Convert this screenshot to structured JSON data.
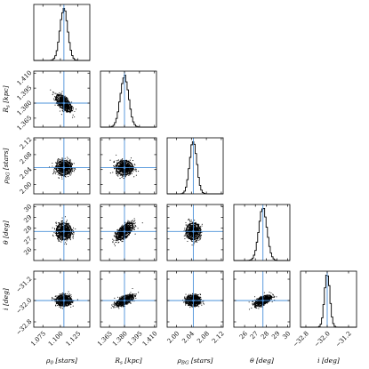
{
  "chart_data": {
    "type": "scatter",
    "subtype": "corner-plot",
    "title": "",
    "parameters": [
      {
        "key": "rho0",
        "label_main": "ρ",
        "label_sub": "0",
        "label_unit": " [stars]",
        "truth": 1.105,
        "sigma": 0.0055,
        "range": [
          1.062,
          1.142
        ],
        "ticks": [
          1.075,
          1.1,
          1.125
        ],
        "tick_labels": [
          "1.075",
          "1.100",
          "1.125"
        ]
      },
      {
        "key": "Rs",
        "label_main": "R",
        "label_sub": "s",
        "label_unit": " [kpc]",
        "truth": 1.38,
        "sigma": 0.0042,
        "range": [
          1.356,
          1.412
        ],
        "ticks": [
          1.365,
          1.38,
          1.395,
          1.41
        ],
        "tick_labels": [
          "1.365",
          "1.380",
          "1.395",
          "1.410"
        ]
      },
      {
        "key": "rhoBG",
        "label_main": "ρ",
        "label_sub": "BG",
        "label_unit": " [stars]",
        "truth": 2.045,
        "sigma": 0.0095,
        "range": [
          1.975,
          2.125
        ],
        "ticks": [
          2.0,
          2.04,
          2.08,
          2.12
        ],
        "tick_labels": [
          "2.00",
          "2.04",
          "2.08",
          "2.12"
        ]
      },
      {
        "key": "theta",
        "label_main": "θ",
        "label_sub": "",
        "label_unit": " [deg]",
        "truth": 27.7,
        "sigma": 0.38,
        "range": [
          25.0,
          30.2
        ],
        "ticks": [
          26,
          27,
          28,
          29,
          30
        ],
        "tick_labels": [
          "26",
          "27",
          "28",
          "29",
          "30"
        ]
      },
      {
        "key": "i",
        "label_main": "i",
        "label_sub": "",
        "label_unit": " [deg]",
        "truth": -32.0,
        "sigma": 0.1,
        "range": [
          -33.0,
          -30.9
        ],
        "ticks": [
          -32.8,
          -32.0,
          -31.2
        ],
        "tick_labels": [
          "−32.8",
          "−32.0",
          "−31.2"
        ]
      }
    ],
    "correlations": [
      {
        "pair": [
          "rho0",
          "Rs"
        ],
        "rho": -0.65
      },
      {
        "pair": [
          "rho0",
          "rhoBG"
        ],
        "rho": 0.0
      },
      {
        "pair": [
          "Rs",
          "rhoBG"
        ],
        "rho": 0.0
      },
      {
        "pair": [
          "rho0",
          "theta"
        ],
        "rho": 0.0
      },
      {
        "pair": [
          "Rs",
          "theta"
        ],
        "rho": 0.65
      },
      {
        "pair": [
          "rhoBG",
          "theta"
        ],
        "rho": 0.0
      },
      {
        "pair": [
          "rho0",
          "i"
        ],
        "rho": 0.0
      },
      {
        "pair": [
          "Rs",
          "i"
        ],
        "rho": 0.65
      },
      {
        "pair": [
          "rhoBG",
          "i"
        ],
        "rho": 0.0
      },
      {
        "pair": [
          "theta",
          "i"
        ],
        "rho": 0.65
      }
    ],
    "colors": {
      "truth_lines": "#4a90d9",
      "points": "#000000"
    },
    "grid": false
  }
}
